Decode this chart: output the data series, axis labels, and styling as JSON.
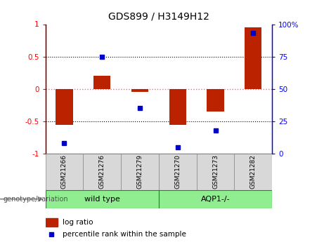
{
  "title": "GDS899 / H3149H12",
  "samples": [
    "GSM21266",
    "GSM21276",
    "GSM21279",
    "GSM21270",
    "GSM21273",
    "GSM21282"
  ],
  "log_ratio": [
    -0.55,
    0.2,
    -0.05,
    -0.55,
    -0.35,
    0.95
  ],
  "percentile_rank": [
    8,
    75,
    35,
    5,
    18,
    93
  ],
  "groups": [
    {
      "label": "wild type",
      "start": 0,
      "end": 3,
      "color": "#90EE90"
    },
    {
      "label": "AQP1-/-",
      "start": 3,
      "end": 6,
      "color": "#90EE90"
    }
  ],
  "bar_color": "#BB2200",
  "dot_color": "#0000CC",
  "left_ylim": [
    -1,
    1
  ],
  "right_ylim": [
    0,
    100
  ],
  "left_yticks": [
    -1,
    -0.5,
    0,
    0.5,
    1
  ],
  "right_yticks": [
    0,
    25,
    50,
    75,
    100
  ],
  "right_yticklabels": [
    "0",
    "25",
    "50",
    "75",
    "100%"
  ],
  "zero_line_color": "#FF6666",
  "background_color": "#ffffff",
  "label_log_ratio": "log ratio",
  "label_percentile": "percentile rank within the sample",
  "genotype_label": "genotype/variation",
  "bar_width": 0.45
}
